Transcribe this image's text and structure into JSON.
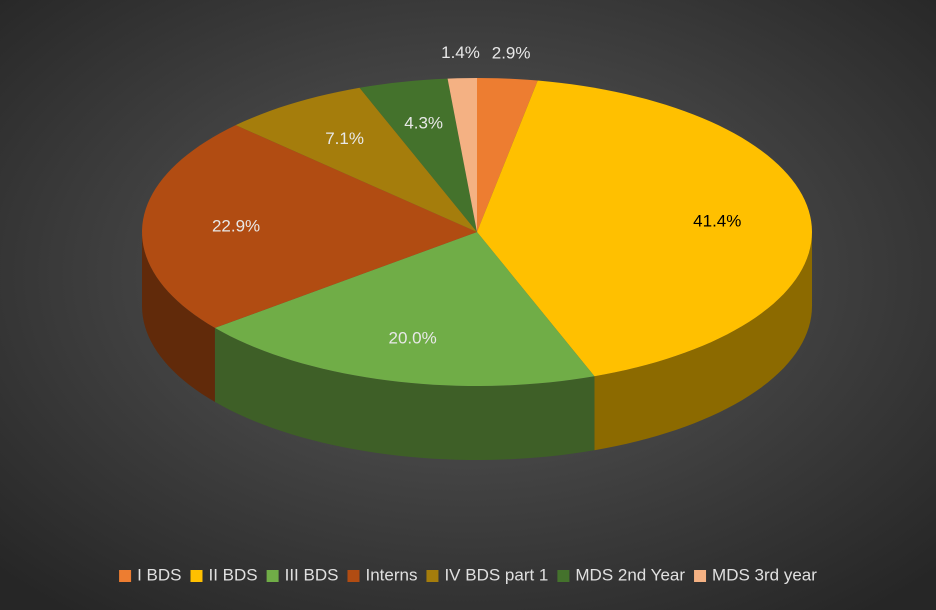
{
  "chart_data": {
    "type": "pie3d",
    "categories": [
      "I BDS",
      "II BDS",
      "III BDS",
      "Interns",
      "IV BDS part 1",
      "MDS 2nd Year",
      "MDS 3rd year"
    ],
    "values": [
      2.9,
      41.4,
      20.0,
      22.9,
      7.1,
      4.3,
      1.4
    ],
    "value_labels": [
      "2.9%",
      "41.4%",
      "20.0%",
      "22.9%",
      "7.1%",
      "4.3%",
      "1.4%"
    ],
    "colors": [
      "#ed7d31",
      "#ffc000",
      "#70ad47",
      "#b14c12",
      "#a57d0c",
      "#44722c",
      "#f4b183"
    ],
    "legend": "bottom"
  }
}
